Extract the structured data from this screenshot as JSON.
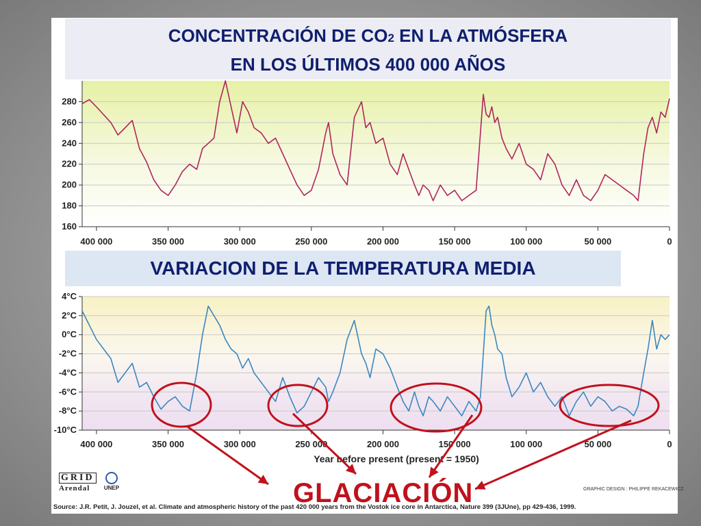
{
  "header": {
    "title_line1_a": "CONCENTRACIÓN DE CO",
    "title_line1_sub": "2",
    "title_line1_b": " EN LA ATMÓSFERA",
    "title_line2": "EN LOS ÚLTIMOS 400 000 AÑOS",
    "subtitle": "VARIACION DE LA TEMPERATURA MEDIA"
  },
  "annotation": {
    "label": "GLACIACIÓN",
    "color": "#c0111c"
  },
  "footer": {
    "source": "Source: J.R. Petit, J. Jouzel, et al. Climate and atmospheric history of the past 420 000 years from the Vostok ice core in Antarctica, Nature 399 (3JUne), pp 429-436, 1999.",
    "design": "GRAPHIC DESIGN : PHILIPPE REKACEWICZ",
    "logo_grid_top": "GRID",
    "logo_grid_bottom": "Arendal",
    "logo_unep": "UNEP"
  },
  "chart_data": [
    {
      "type": "line",
      "xlim": [
        410000,
        0
      ],
      "ylim": [
        160,
        300
      ],
      "xticks": [
        400000,
        350000,
        300000,
        250000,
        200000,
        150000,
        100000,
        50000,
        0
      ],
      "xtick_labels": [
        "400 000",
        "350 000",
        "300 000",
        "250 000",
        "200 000",
        "150 000",
        "100 000",
        "50 000",
        "0"
      ],
      "yticks": [
        160,
        180,
        200,
        220,
        240,
        260,
        280
      ],
      "ytick_labels": [
        "160",
        "180",
        "200",
        "220",
        "240",
        "260",
        "280"
      ],
      "line_color": "#b0245e",
      "series": [
        {
          "x": [
            410000,
            405000,
            400000,
            390000,
            385000,
            380000,
            375000,
            370000,
            365000,
            360000,
            355000,
            350000,
            345000,
            340000,
            335000,
            330000,
            326000,
            322000,
            318000,
            314000,
            310000,
            306000,
            302000,
            298000,
            294000,
            290000,
            285000,
            280000,
            275000,
            270000,
            265000,
            260000,
            255000,
            250000,
            245000,
            240000,
            238000,
            235000,
            230000,
            225000,
            220000,
            215000,
            212000,
            209000,
            205000,
            200000,
            195000,
            190000,
            186000,
            182000,
            178000,
            175000,
            172000,
            168000,
            165000,
            160000,
            155000,
            150000,
            145000,
            140000,
            135000,
            132000,
            130000,
            128000,
            126000,
            124000,
            122000,
            120000,
            117000,
            114000,
            110000,
            105000,
            100000,
            95000,
            90000,
            85000,
            80000,
            75000,
            70000,
            65000,
            60000,
            55000,
            50000,
            45000,
            40000,
            35000,
            30000,
            25000,
            22000,
            18000,
            15000,
            12000,
            9000,
            6000,
            3000,
            0
          ],
          "y": [
            278,
            282,
            275,
            260,
            248,
            255,
            262,
            235,
            222,
            205,
            195,
            190,
            200,
            213,
            220,
            215,
            235,
            240,
            245,
            280,
            300,
            275,
            250,
            280,
            270,
            255,
            250,
            240,
            245,
            230,
            215,
            200,
            190,
            195,
            215,
            250,
            260,
            230,
            210,
            200,
            265,
            280,
            255,
            260,
            240,
            245,
            220,
            210,
            230,
            215,
            200,
            190,
            200,
            195,
            185,
            200,
            190,
            195,
            185,
            190,
            195,
            250,
            287,
            268,
            265,
            275,
            260,
            265,
            245,
            235,
            225,
            240,
            220,
            215,
            205,
            230,
            220,
            200,
            190,
            205,
            190,
            185,
            195,
            210,
            205,
            200,
            195,
            190,
            185,
            230,
            255,
            265,
            250,
            270,
            265,
            283
          ]
        }
      ]
    },
    {
      "type": "line",
      "xlim": [
        410000,
        0
      ],
      "ylim": [
        -10,
        4
      ],
      "xticks": [
        400000,
        350000,
        300000,
        250000,
        200000,
        150000,
        100000,
        50000,
        0
      ],
      "xtick_labels": [
        "400 000",
        "350 000",
        "300 000",
        "250 000",
        "200 000",
        "150 000",
        "100 000",
        "50 000",
        "0"
      ],
      "yticks": [
        4,
        2,
        0,
        -2,
        -4,
        -6,
        -8,
        -10
      ],
      "ytick_labels": [
        "4°C",
        "2°C",
        "0°C",
        "-2°C",
        "-4°C",
        "-6°C",
        "-8°C",
        "-10°C"
      ],
      "xlabel": "Year before present (present = 1950)",
      "line_color": "#3a86c0",
      "series": [
        {
          "x": [
            410000,
            405000,
            400000,
            395000,
            390000,
            385000,
            380000,
            375000,
            370000,
            365000,
            360000,
            355000,
            350000,
            345000,
            340000,
            335000,
            330000,
            326000,
            322000,
            318000,
            314000,
            310000,
            306000,
            302000,
            298000,
            294000,
            290000,
            285000,
            280000,
            275000,
            270000,
            265000,
            260000,
            255000,
            250000,
            245000,
            240000,
            238000,
            235000,
            230000,
            225000,
            220000,
            215000,
            212000,
            209000,
            205000,
            200000,
            195000,
            190000,
            186000,
            182000,
            178000,
            175000,
            172000,
            168000,
            165000,
            160000,
            155000,
            150000,
            145000,
            140000,
            135000,
            132000,
            130000,
            128000,
            126000,
            124000,
            122000,
            120000,
            117000,
            114000,
            110000,
            105000,
            100000,
            95000,
            90000,
            85000,
            80000,
            75000,
            70000,
            65000,
            60000,
            55000,
            50000,
            45000,
            40000,
            35000,
            30000,
            25000,
            22000,
            18000,
            15000,
            12000,
            9000,
            6000,
            3000,
            0
          ],
          "y": [
            2.5,
            1.0,
            -0.5,
            -1.5,
            -2.5,
            -5.0,
            -4.0,
            -3.0,
            -5.5,
            -5.0,
            -6.5,
            -7.8,
            -7.0,
            -6.5,
            -7.5,
            -8.0,
            -4.0,
            0.0,
            3.0,
            2.0,
            1.0,
            -0.5,
            -1.5,
            -2.0,
            -3.5,
            -2.5,
            -4.0,
            -5.0,
            -6.0,
            -7.0,
            -4.5,
            -6.5,
            -8.2,
            -7.5,
            -6.0,
            -4.5,
            -5.5,
            -7.0,
            -6.0,
            -4.0,
            -0.5,
            1.5,
            -2.0,
            -3.0,
            -4.5,
            -1.5,
            -2.0,
            -3.5,
            -5.5,
            -7.0,
            -8.0,
            -6.0,
            -7.5,
            -8.5,
            -6.5,
            -7.0,
            -8.0,
            -6.5,
            -7.5,
            -8.5,
            -7.0,
            -8.0,
            -6.5,
            -2.0,
            2.5,
            3.0,
            1.0,
            0.0,
            -1.5,
            -2.0,
            -4.5,
            -6.5,
            -5.5,
            -4.0,
            -6.0,
            -5.0,
            -6.5,
            -7.5,
            -6.5,
            -8.5,
            -7.0,
            -6.0,
            -7.5,
            -6.5,
            -7.0,
            -8.0,
            -7.5,
            -7.8,
            -8.5,
            -7.5,
            -4.0,
            -1.5,
            1.5,
            -1.5,
            0.0,
            -0.5,
            0.0
          ]
        }
      ]
    }
  ]
}
